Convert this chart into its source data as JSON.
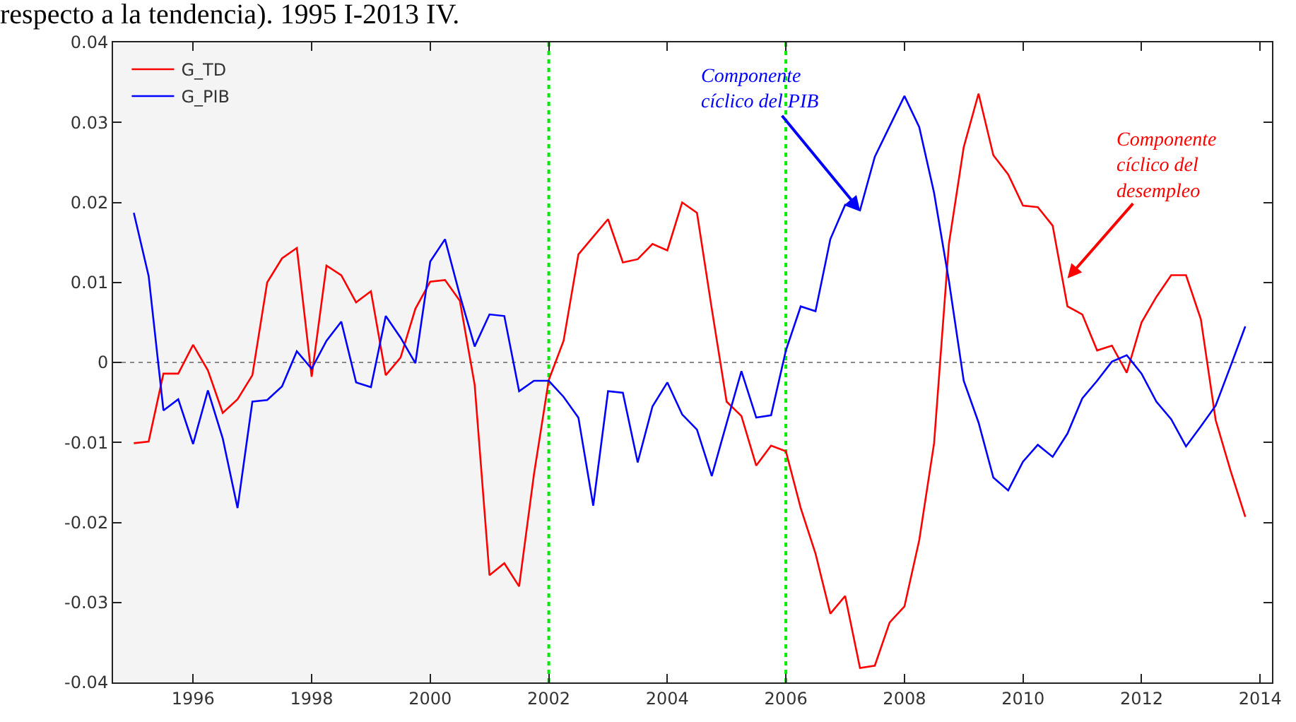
{
  "chart_data": {
    "type": "line",
    "title": "respecto a la tendencia). 1995 I-2013 IV.",
    "x": [
      1995.0,
      1995.25,
      1995.5,
      1995.75,
      1996.0,
      1996.25,
      1996.5,
      1996.75,
      1997.0,
      1997.25,
      1997.5,
      1997.75,
      1998.0,
      1998.25,
      1998.5,
      1998.75,
      1999.0,
      1999.25,
      1999.5,
      1999.75,
      2000.0,
      2000.25,
      2000.5,
      2000.75,
      2001.0,
      2001.25,
      2001.5,
      2001.75,
      2002.0,
      2002.25,
      2002.5,
      2002.75,
      2003.0,
      2003.25,
      2003.5,
      2003.75,
      2004.0,
      2004.25,
      2004.5,
      2004.75,
      2005.0,
      2005.25,
      2005.5,
      2005.75,
      2006.0,
      2006.25,
      2006.5,
      2006.75,
      2007.0,
      2007.25,
      2007.5,
      2007.75,
      2008.0,
      2008.25,
      2008.5,
      2008.75,
      2009.0,
      2009.25,
      2009.5,
      2009.75,
      2010.0,
      2010.25,
      2010.5,
      2010.75,
      2011.0,
      2011.25,
      2011.5,
      2011.75,
      2012.0,
      2012.25,
      2012.5,
      2012.75,
      2013.0,
      2013.25,
      2013.5,
      2013.75
    ],
    "series": [
      {
        "name": "G_TD",
        "color": "#ff0000",
        "values": [
          -0.0101,
          -0.0099,
          -0.0014,
          -0.0014,
          0.0022,
          -0.001,
          -0.0063,
          -0.0046,
          -0.0016,
          0.01,
          0.013,
          0.0143,
          -0.0018,
          0.0121,
          0.0109,
          0.0075,
          0.0089,
          -0.0016,
          0.0006,
          0.0067,
          0.0101,
          0.0103,
          0.0077,
          -0.0028,
          -0.0266,
          -0.0251,
          -0.028,
          -0.014,
          -0.0022,
          0.0027,
          0.0135,
          0.0157,
          0.0179,
          0.0125,
          0.0129,
          0.0148,
          0.014,
          0.02,
          0.0187,
          0.0067,
          -0.0049,
          -0.0067,
          -0.0129,
          -0.0104,
          -0.0111,
          -0.0182,
          -0.0239,
          -0.0314,
          -0.0292,
          -0.0382,
          -0.0379,
          -0.0325,
          -0.0305,
          -0.0222,
          -0.0101,
          0.0148,
          0.0269,
          0.0336,
          0.0259,
          0.0235,
          0.0196,
          0.0194,
          0.0171,
          0.007,
          0.006,
          0.0015,
          0.0021,
          -0.0013,
          0.005,
          0.0082,
          0.0109,
          0.0109,
          0.0054,
          -0.0072,
          -0.0135,
          -0.0193
        ]
      },
      {
        "name": "G_PIB",
        "color": "#0000ff",
        "values": [
          0.0187,
          0.0108,
          -0.006,
          -0.0046,
          -0.0102,
          -0.0035,
          -0.0095,
          -0.0182,
          -0.0049,
          -0.0047,
          -0.003,
          0.0014,
          -0.0008,
          0.0027,
          0.0051,
          -0.0025,
          -0.0031,
          0.0058,
          0.0031,
          -0.0001,
          0.0126,
          0.0154,
          0.0084,
          0.002,
          0.006,
          0.0058,
          -0.0036,
          -0.0023,
          -0.0023,
          -0.0043,
          -0.0069,
          -0.0179,
          -0.0036,
          -0.0038,
          -0.0125,
          -0.0055,
          -0.0025,
          -0.0065,
          -0.0084,
          -0.0142,
          -0.0076,
          -0.0011,
          -0.0069,
          -0.0066,
          0.0015,
          0.007,
          0.0064,
          0.0154,
          0.0197,
          0.019,
          0.0257,
          0.0295,
          0.0333,
          0.0294,
          0.0212,
          0.0102,
          -0.0023,
          -0.0075,
          -0.0144,
          -0.016,
          -0.0124,
          -0.0103,
          -0.0118,
          -0.0089,
          -0.0045,
          -0.0023,
          0.0001,
          0.0009,
          -0.0014,
          -0.0049,
          -0.0071,
          -0.0105,
          -0.008,
          -0.0054,
          -0.0005,
          0.0045
        ]
      }
    ],
    "xlim": [
      1994.65,
      2014.2
    ],
    "xticks": [
      1996,
      1998,
      2000,
      2002,
      2004,
      2006,
      2008,
      2010,
      2012,
      2014
    ],
    "ylim": [
      -0.04,
      0.04
    ],
    "yticks": [
      -0.04,
      -0.03,
      -0.02,
      -0.01,
      0,
      0.01,
      0.02,
      0.03,
      0.04
    ],
    "ref_lines": [
      {
        "axis": "y",
        "value": 0,
        "color": "#888888",
        "line_style": "dotted"
      },
      {
        "axis": "x",
        "value": 2002,
        "color": "#00ee00",
        "line_style": "dotted"
      },
      {
        "axis": "x",
        "value": 2006,
        "color": "#00ee00",
        "line_style": "dotted"
      }
    ],
    "bands": [
      {
        "axis": "x",
        "from": 1994.65,
        "to": 2002,
        "color": "#f4f4f4"
      }
    ],
    "annotations": [
      {
        "text": "Componente\ncíclico del\ndesempleo",
        "x": 2010.75,
        "y": 0.0105
      },
      {
        "text": "Componente\ncíclico del PIB",
        "x": 2007.25,
        "y": 0.019
      }
    ],
    "legend": "top left",
    "grid": false,
    "marker": "none",
    "line_style": "solid"
  }
}
